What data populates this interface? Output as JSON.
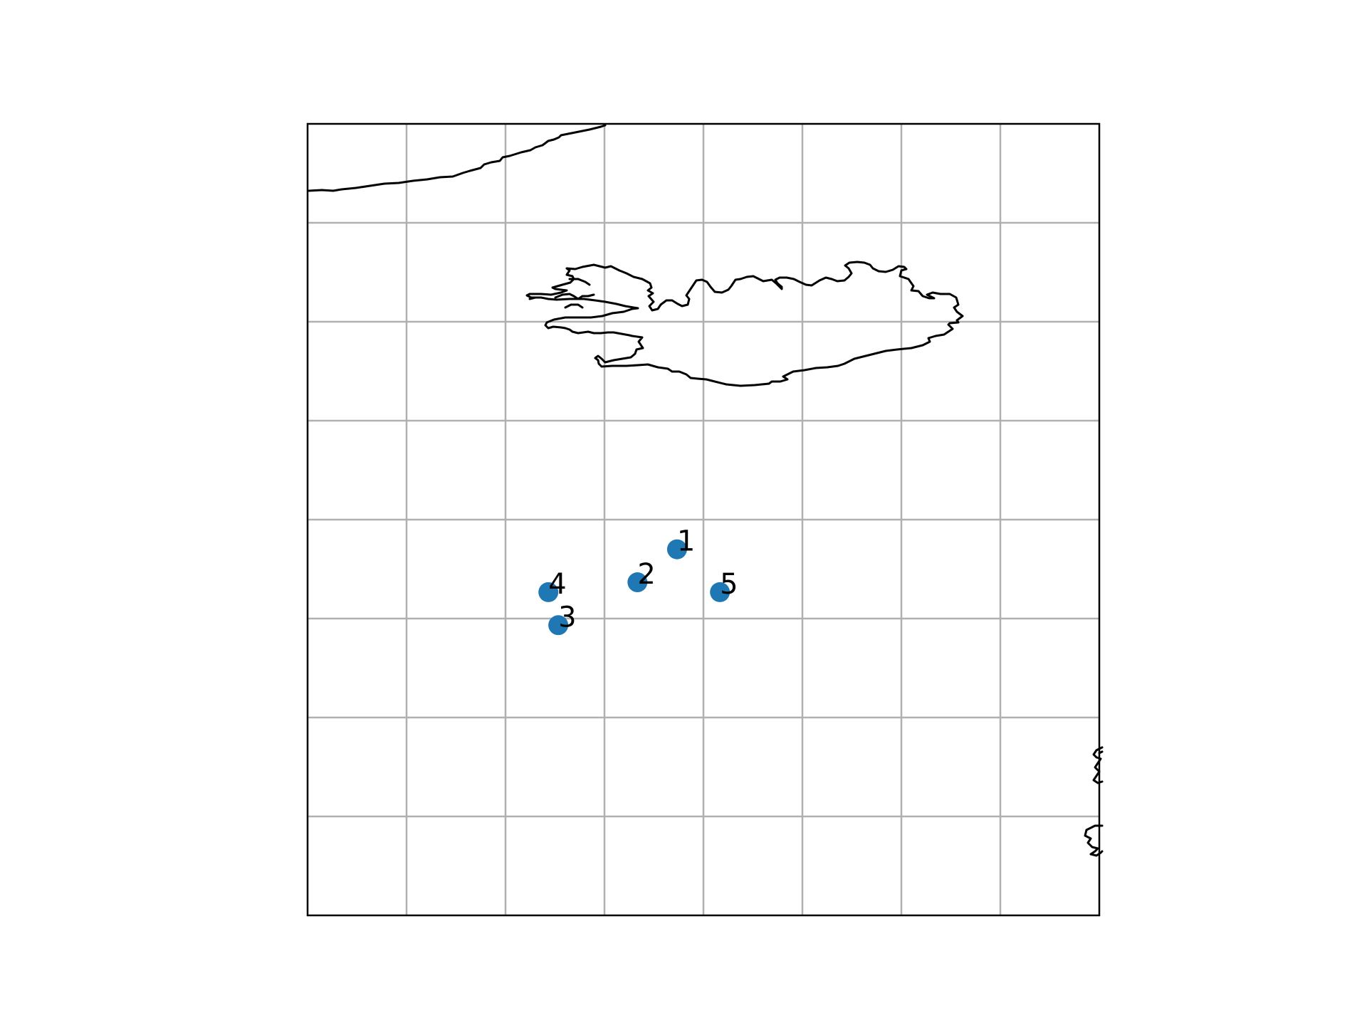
{
  "map": {
    "projection": "plate-carree",
    "extent_lon": [
      -32,
      -8
    ],
    "extent_lat": [
      56,
      80
    ],
    "gridlines": true,
    "grid_lon": [
      -29,
      -26,
      -23,
      -20,
      -17,
      -14,
      -11
    ],
    "grid_lat": [
      59,
      62,
      65,
      68,
      71,
      74,
      77
    ],
    "grid_color": "#b0b0b0",
    "coastline_color": "#000000",
    "marker_color": "#1f77b4"
  },
  "points": [
    {
      "label": "1",
      "lon": -20.8,
      "lat": 67.1
    },
    {
      "label": "2",
      "lon": -22.0,
      "lat": 66.1
    },
    {
      "label": "3",
      "lon": -24.4,
      "lat": 64.8
    },
    {
      "label": "4",
      "lon": -24.7,
      "lat": 65.8
    },
    {
      "label": "5",
      "lon": -19.5,
      "lat": 65.8
    }
  ]
}
